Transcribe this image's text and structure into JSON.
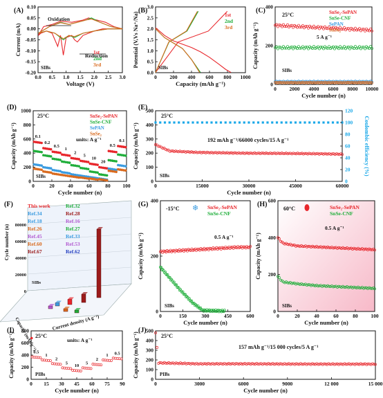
{
  "colors": {
    "red": "#e8262b",
    "green": "#1fae3a",
    "blue": "#3a9be0",
    "orange": "#d96a1e",
    "cyan": "#1aa8e8",
    "darkred": "#9b1b1b",
    "purple": "#b25ad1",
    "navy": "#1f3bbf"
  },
  "chart_data": [
    {
      "panel": "(A)",
      "type": "line",
      "xlabel": "Voltage (V)",
      "ylabel": "Current (mA)",
      "xlim": [
        0,
        3.0
      ],
      "ylim": [
        -0.2,
        0.1
      ],
      "xticks": [
        "0.0",
        "0.5",
        "1.0",
        "1.5",
        "2.0",
        "2.5",
        "3.0"
      ],
      "yticks": [
        "-0.20",
        "-0.15",
        "-0.10",
        "-0.05",
        "0.00",
        "0.05",
        "0.10"
      ],
      "annotations": [
        "Oxidation",
        "Reduction",
        "SIBs"
      ],
      "series": [
        {
          "name": "1st",
          "color": "#e8262b",
          "x": [
            0.01,
            0.1,
            0.3,
            0.5,
            0.6,
            0.7,
            0.8,
            0.9,
            1.0,
            1.2,
            1.3,
            1.4,
            1.6,
            1.8,
            2.0,
            2.3,
            2.6,
            3.0,
            2.7,
            2.4,
            2.1,
            1.9,
            1.8,
            1.6,
            1.2,
            0.8,
            0.5,
            0.2,
            0.01
          ],
          "y": [
            -0.03,
            -0.02,
            -0.01,
            -0.02,
            -0.05,
            -0.08,
            -0.03,
            -0.12,
            -0.04,
            -0.03,
            -0.05,
            -0.06,
            -0.03,
            -0.02,
            -0.01,
            0.0,
            0.0,
            0.0,
            0.01,
            0.03,
            0.04,
            0.045,
            0.05,
            0.04,
            0.03,
            0.035,
            0.02,
            0.01,
            -0.03
          ]
        },
        {
          "name": "2nd",
          "color": "#1fae3a",
          "x": [
            0.01,
            0.3,
            0.6,
            0.9,
            1.1,
            1.3,
            1.6,
            2.0,
            2.5,
            3.0,
            2.6,
            2.2,
            1.9,
            1.7,
            1.4,
            1.1,
            0.8,
            0.4,
            0.01
          ],
          "y": [
            -0.02,
            -0.01,
            -0.02,
            -0.05,
            -0.03,
            -0.04,
            -0.02,
            -0.01,
            0.0,
            0.0,
            0.01,
            0.03,
            0.05,
            0.04,
            0.03,
            0.02,
            0.03,
            0.01,
            -0.02
          ]
        },
        {
          "name": "3rd",
          "color": "#d96a1e",
          "x": [
            0.01,
            0.3,
            0.6,
            0.9,
            1.1,
            1.3,
            1.6,
            2.0,
            2.5,
            3.0,
            2.6,
            2.2,
            1.9,
            1.7,
            1.4,
            1.1,
            0.8,
            0.4,
            0.01
          ],
          "y": [
            -0.02,
            -0.01,
            -0.02,
            -0.045,
            -0.03,
            -0.035,
            -0.02,
            -0.01,
            0.0,
            0.0,
            0.01,
            0.03,
            0.045,
            0.04,
            0.03,
            0.02,
            0.028,
            0.01,
            -0.02
          ]
        }
      ]
    },
    {
      "panel": "(B)",
      "type": "line",
      "xlabel": "Capacity (mAh g⁻¹)",
      "ylabel": "Potential (V,Vs Na⁺/Na)",
      "xlim": [
        0,
        1000
      ],
      "ylim": [
        0,
        3.0
      ],
      "xticks": [
        "0",
        "200",
        "400",
        "600",
        "800",
        "1000"
      ],
      "yticks": [
        "0.0",
        "0.5",
        "1.0",
        "1.5",
        "2.0",
        "2.5",
        "3.0"
      ],
      "annotations": [
        "SIBs"
      ],
      "series": [
        {
          "name": "1st",
          "color": "#e8262b",
          "x": [
            0,
            100,
            200,
            300,
            400,
            500,
            600,
            700,
            780,
            840
          ],
          "y": [
            2.05,
            1.7,
            1.45,
            1.3,
            1.15,
            0.95,
            0.7,
            0.4,
            0.15,
            0.01
          ]
        },
        {
          "name": "2nd",
          "color": "#1fae3a",
          "x": [
            0,
            100,
            200,
            300,
            400,
            500
          ],
          "y": [
            2.0,
            1.6,
            1.35,
            1.1,
            0.6,
            0.01
          ]
        },
        {
          "name": "3rd",
          "color": "#d96a1e",
          "x": [
            0,
            100,
            200,
            300,
            400,
            490
          ],
          "y": [
            2.0,
            1.6,
            1.35,
            1.1,
            0.6,
            0.01
          ]
        }
      ]
    },
    {
      "panel": "(C)",
      "type": "scatter",
      "xlabel": "Cycle number (n)",
      "ylabel": "Capacity (mAh g⁻¹)",
      "xlim": [
        0,
        10000
      ],
      "ylim": [
        0,
        400
      ],
      "xticks": [
        "0",
        "2000",
        "4000",
        "6000",
        "8000",
        "10000"
      ],
      "yticks": [
        "0",
        "200",
        "400"
      ],
      "annotations": [
        "25°C",
        "5 A g⁻¹",
        "SIBs"
      ],
      "series": [
        {
          "name": "SnSe₂-SePAN",
          "color": "#e8262b",
          "value": 280
        },
        {
          "name": "SnSe-CNF",
          "color": "#1fae3a",
          "value": 190
        },
        {
          "name": "SePAN",
          "color": "#3a9be0",
          "value": 15
        },
        {
          "name": "SnSe₂",
          "color": "#d96a1e",
          "value": 10
        }
      ]
    },
    {
      "panel": "(D)",
      "type": "scatter",
      "xlabel": "Cycle number (n)",
      "ylabel": "Capacity (mAh g⁻¹)",
      "xlim": [
        0,
        100
      ],
      "ylim": [
        0,
        1000
      ],
      "xticks": [
        "0",
        "20",
        "40",
        "60",
        "80",
        "100"
      ],
      "yticks": [
        "0",
        "200",
        "400",
        "600",
        "800",
        "1000"
      ],
      "annotations": [
        "25°C",
        "units: A g⁻¹",
        "SIBs"
      ],
      "rate_labels": [
        "0.1",
        "0.2",
        "0.5",
        "1",
        "2",
        "5",
        "10",
        "20",
        "0.5",
        "0.1"
      ],
      "series": [
        {
          "name": "SnSe₂-SePAN",
          "color": "#e8262b",
          "values": [
            560,
            470,
            420,
            380,
            330,
            290,
            250,
            200,
            430,
            500
          ]
        },
        {
          "name": "SnSe-CNF",
          "color": "#1fae3a",
          "values": [
            430,
            370,
            320,
            280,
            230,
            190,
            140,
            100,
            300,
            380
          ]
        },
        {
          "name": "SePAN",
          "color": "#3a9be0",
          "values": [
            240,
            200,
            160,
            130,
            100,
            80,
            60,
            40,
            180,
            230
          ]
        },
        {
          "name": "SnSe₂",
          "color": "#d96a1e",
          "values": [
            180,
            140,
            110,
            90,
            70,
            55,
            40,
            30,
            150,
            170
          ]
        }
      ]
    },
    {
      "panel": "(E)",
      "type": "scatter",
      "xlabel": "Cycle number (n)",
      "ylabel": "Capacity (mAh g⁻¹)",
      "y2label": "Coulombic efficiency (%)",
      "xlim": [
        0,
        66000
      ],
      "ylim": [
        0,
        500
      ],
      "y2lim": [
        0,
        120
      ],
      "xticks": [
        "0",
        "15000",
        "30000",
        "45000",
        "60000"
      ],
      "yticks": [
        "0",
        "100",
        "200",
        "300",
        "400",
        "500"
      ],
      "y2ticks": [
        "0",
        "20",
        "40",
        "60",
        "80",
        "100",
        "120"
      ],
      "annotations": [
        "25°C",
        "192 mAh g⁻¹/66000 cycles/15 A g⁻¹",
        "SIBs"
      ],
      "series": [
        {
          "name": "Capacity",
          "color": "#e8262b",
          "x": [
            0,
            5000,
            15000,
            30000,
            45000,
            60000,
            66000
          ],
          "y": [
            260,
            215,
            205,
            200,
            198,
            195,
            192
          ]
        },
        {
          "name": "Coulombic efficiency",
          "color": "#1aa8e8",
          "value": 100
        }
      ]
    },
    {
      "panel": "(F)",
      "type": "bar",
      "xlabel": "Current density (A g⁻¹)",
      "ylabel": "Cycle number (n)",
      "zlabel": "Capacity (mAh g⁻¹)",
      "yticks": [
        "0",
        "20000",
        "40000",
        "60000",
        "80000"
      ],
      "ztick_labels": [
        "500",
        "400",
        "300",
        "200",
        "100",
        "0"
      ],
      "annotations": [
        "SIBs"
      ],
      "legend": [
        {
          "name": "This work",
          "color": "#e8262b"
        },
        {
          "name": "Ref.34",
          "color": "#3a9be0"
        },
        {
          "name": "Ref.18",
          "color": "#3a9be0"
        },
        {
          "name": "Ref.26",
          "color": "#d96a1e"
        },
        {
          "name": "Ref.45",
          "color": "#b25ad1"
        },
        {
          "name": "Ref.60",
          "color": "#d96a1e"
        },
        {
          "name": "Ref.67",
          "color": "#9b1b1b"
        },
        {
          "name": "Ref.32",
          "color": "#1fae3a"
        },
        {
          "name": "Ref.28",
          "color": "#9b1b1b"
        },
        {
          "name": "Ref.16",
          "color": "#b25ad1"
        },
        {
          "name": "Ref.27",
          "color": "#1fae3a"
        },
        {
          "name": "Ref.33",
          "color": "#3a9be0"
        },
        {
          "name": "Ref.53",
          "color": "#b25ad1"
        },
        {
          "name": "Ref.62",
          "color": "#1f3bbf"
        }
      ],
      "values": [
        66000,
        8000,
        5000,
        3000,
        2000,
        1500,
        1000
      ]
    },
    {
      "panel": "(G)",
      "type": "scatter",
      "xlabel": "Cycle number (n)",
      "ylabel": "Capacity (mAh g⁻¹)",
      "xlim": [
        0,
        700
      ],
      "ylim": [
        0,
        500
      ],
      "xticks": [
        "0",
        "150",
        "300",
        "450",
        "600"
      ],
      "yticks": [
        "0",
        "200",
        "400"
      ],
      "annotations": [
        "-15°C",
        "0.5 A g⁻¹",
        "SIBs"
      ],
      "series": [
        {
          "name": "SnSe₂-SePAN",
          "color": "#e8262b",
          "x": [
            0,
            150,
            300,
            450,
            600,
            700
          ],
          "y": [
            270,
            275,
            280,
            285,
            290,
            290
          ]
        },
        {
          "name": "SnSe-CNF",
          "color": "#1fae3a",
          "x": [
            0,
            60,
            150,
            250,
            330,
            500
          ],
          "y": [
            200,
            160,
            100,
            40,
            5,
            2
          ]
        }
      ]
    },
    {
      "panel": "(H)",
      "type": "scatter",
      "xlabel": "Cycle number (n)",
      "ylabel": "Capacity (mAh g⁻¹)",
      "xlim": [
        0,
        100
      ],
      "ylim": [
        0,
        600
      ],
      "xticks": [
        "0",
        "20",
        "40",
        "60",
        "80",
        "100"
      ],
      "yticks": [
        "0",
        "200",
        "400",
        "600"
      ],
      "annotations": [
        "60°C",
        "0.5 A g⁻¹",
        "SIBs"
      ],
      "series": [
        {
          "name": "SnSe₂-SePAN",
          "color": "#e8262b",
          "x": [
            0,
            5,
            20,
            40,
            60,
            80,
            100
          ],
          "y": [
            400,
            370,
            355,
            350,
            345,
            340,
            335
          ]
        },
        {
          "name": "SnSe-CNF",
          "color": "#1fae3a",
          "x": [
            0,
            5,
            20,
            40,
            60,
            80,
            100
          ],
          "y": [
            190,
            160,
            150,
            140,
            135,
            130,
            125
          ]
        }
      ]
    },
    {
      "panel": "(I)",
      "type": "scatter",
      "xlabel": "Cycle number (n)",
      "ylabel": "Capacity (mAh g⁻¹)",
      "xlim": [
        0,
        90
      ],
      "ylim": [
        0,
        800
      ],
      "xticks": [
        "0",
        "15",
        "30",
        "45",
        "60",
        "75",
        "90"
      ],
      "yticks": [
        "0",
        "200",
        "400",
        "600",
        "800"
      ],
      "annotations": [
        "25°C",
        "units: A g⁻¹",
        "PIBs"
      ],
      "rate_labels": [
        "0.5",
        "1",
        "2",
        "5",
        "10",
        "5",
        "2",
        "1",
        "0.5"
      ],
      "series": [
        {
          "name": "Capacity",
          "color": "#e8262b",
          "values": [
            370,
            320,
            260,
            190,
            150,
            190,
            250,
            320,
            350
          ]
        }
      ]
    },
    {
      "panel": "(J)",
      "type": "scatter",
      "xlabel": "Cycle number (n)",
      "ylabel": "Capacity (mAh g⁻¹)",
      "xlim": [
        0,
        15000
      ],
      "ylim": [
        0,
        500
      ],
      "xticks": [
        "0",
        "3000",
        "6000",
        "9000",
        "12 000",
        "15 000"
      ],
      "yticks": [
        "0",
        "100",
        "200",
        "300",
        "400",
        "500"
      ],
      "annotations": [
        "25°C",
        "157 mAh g⁻¹/15 000 cycles/5 A g⁻¹",
        "PIBs"
      ],
      "series": [
        {
          "name": "Capacity",
          "color": "#e8262b",
          "x": [
            0,
            200,
            3000,
            6000,
            9000,
            12000,
            15000
          ],
          "y": [
            480,
            170,
            160,
            160,
            158,
            157,
            157
          ]
        }
      ]
    }
  ]
}
